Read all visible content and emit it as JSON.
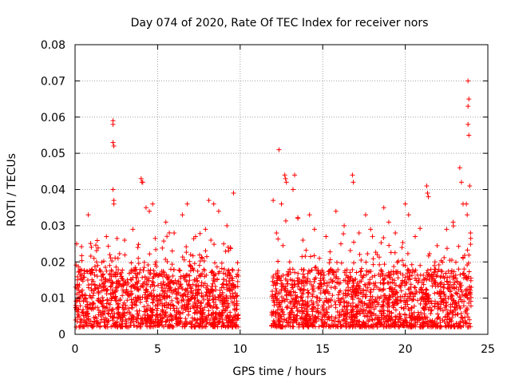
{
  "chart_data": {
    "type": "scatter",
    "title": "Day 074 of 2020, Rate Of TEC Index for receiver nors",
    "xlabel": "GPS time / hours",
    "ylabel": "ROTI / TECUs",
    "xlim": [
      0,
      25
    ],
    "ylim": [
      0,
      0.08
    ],
    "xticks": [
      0,
      5,
      10,
      15,
      20,
      25
    ],
    "xtick_labels": [
      "0",
      "5",
      "10",
      "15",
      "20",
      "25"
    ],
    "yticks": [
      0,
      0.01,
      0.02,
      0.03,
      0.04,
      0.05,
      0.06,
      0.07,
      0.08
    ],
    "ytick_labels": [
      "0",
      "0.01",
      "0.02",
      "0.03",
      "0.04",
      "0.05",
      "0.06",
      "0.07",
      "0.08"
    ],
    "grid": true,
    "marker": "+",
    "color": "#ff0000",
    "data_gap_hours": [
      9.9,
      11.9
    ],
    "series": [
      {
        "name": "ROTI",
        "points": [
          [
            0.05,
            0.008
          ],
          [
            0.1,
            0.025
          ],
          [
            0.2,
            0.013
          ],
          [
            0.3,
            0.018
          ],
          [
            0.4,
            0.006
          ],
          [
            0.6,
            0.011
          ],
          [
            0.8,
            0.033
          ],
          [
            1.0,
            0.012
          ],
          [
            1.3,
            0.02
          ],
          [
            1.6,
            0.015
          ],
          [
            1.9,
            0.027
          ],
          [
            2.1,
            0.022
          ],
          [
            2.3,
            0.059
          ],
          [
            2.3,
            0.058
          ],
          [
            2.3,
            0.053
          ],
          [
            2.35,
            0.052
          ],
          [
            2.3,
            0.04
          ],
          [
            2.35,
            0.037
          ],
          [
            2.35,
            0.036
          ],
          [
            2.6,
            0.021
          ],
          [
            2.8,
            0.017
          ],
          [
            3.0,
            0.026
          ],
          [
            3.2,
            0.011
          ],
          [
            3.5,
            0.029
          ],
          [
            3.8,
            0.024
          ],
          [
            4.0,
            0.043
          ],
          [
            4.05,
            0.042
          ],
          [
            4.1,
            0.042
          ],
          [
            4.3,
            0.035
          ],
          [
            4.5,
            0.034
          ],
          [
            4.7,
            0.036
          ],
          [
            4.9,
            0.02
          ],
          [
            5.2,
            0.014
          ],
          [
            5.5,
            0.031
          ],
          [
            5.8,
            0.018
          ],
          [
            6.0,
            0.028
          ],
          [
            6.2,
            0.009
          ],
          [
            6.5,
            0.033
          ],
          [
            6.8,
            0.036
          ],
          [
            7.0,
            0.022
          ],
          [
            7.3,
            0.027
          ],
          [
            7.6,
            0.016
          ],
          [
            7.9,
            0.029
          ],
          [
            8.1,
            0.037
          ],
          [
            8.4,
            0.036
          ],
          [
            8.7,
            0.034
          ],
          [
            9.0,
            0.025
          ],
          [
            9.2,
            0.03
          ],
          [
            9.4,
            0.024
          ],
          [
            9.6,
            0.039
          ],
          [
            9.8,
            0.008
          ],
          [
            12.0,
            0.037
          ],
          [
            12.2,
            0.028
          ],
          [
            12.35,
            0.051
          ],
          [
            12.5,
            0.036
          ],
          [
            12.7,
            0.044
          ],
          [
            12.75,
            0.043
          ],
          [
            12.8,
            0.042
          ],
          [
            13.0,
            0.02
          ],
          [
            13.2,
            0.04
          ],
          [
            13.3,
            0.044
          ],
          [
            13.5,
            0.032
          ],
          [
            13.8,
            0.026
          ],
          [
            14.2,
            0.033
          ],
          [
            14.5,
            0.029
          ],
          [
            14.8,
            0.021
          ],
          [
            15.2,
            0.027
          ],
          [
            15.5,
            0.018
          ],
          [
            15.8,
            0.034
          ],
          [
            16.1,
            0.025
          ],
          [
            16.3,
            0.03
          ],
          [
            16.8,
            0.044
          ],
          [
            16.85,
            0.042
          ],
          [
            17.2,
            0.028
          ],
          [
            17.6,
            0.033
          ],
          [
            17.9,
            0.029
          ],
          [
            18.3,
            0.022
          ],
          [
            18.7,
            0.035
          ],
          [
            19.0,
            0.031
          ],
          [
            19.4,
            0.028
          ],
          [
            19.8,
            0.024
          ],
          [
            20.0,
            0.036
          ],
          [
            20.2,
            0.033
          ],
          [
            20.6,
            0.027
          ],
          [
            20.9,
            0.019
          ],
          [
            21.3,
            0.041
          ],
          [
            21.35,
            0.039
          ],
          [
            21.4,
            0.038
          ],
          [
            21.8,
            0.02
          ],
          [
            22.2,
            0.016
          ],
          [
            22.5,
            0.029
          ],
          [
            22.9,
            0.031
          ],
          [
            23.3,
            0.046
          ],
          [
            23.4,
            0.042
          ],
          [
            23.5,
            0.036
          ],
          [
            23.7,
            0.036
          ],
          [
            23.75,
            0.033
          ],
          [
            23.8,
            0.07
          ],
          [
            23.85,
            0.065
          ],
          [
            23.8,
            0.063
          ],
          [
            23.8,
            0.058
          ],
          [
            23.85,
            0.055
          ],
          [
            23.9,
            0.041
          ],
          [
            23.95,
            0.028
          ]
        ]
      }
    ]
  }
}
